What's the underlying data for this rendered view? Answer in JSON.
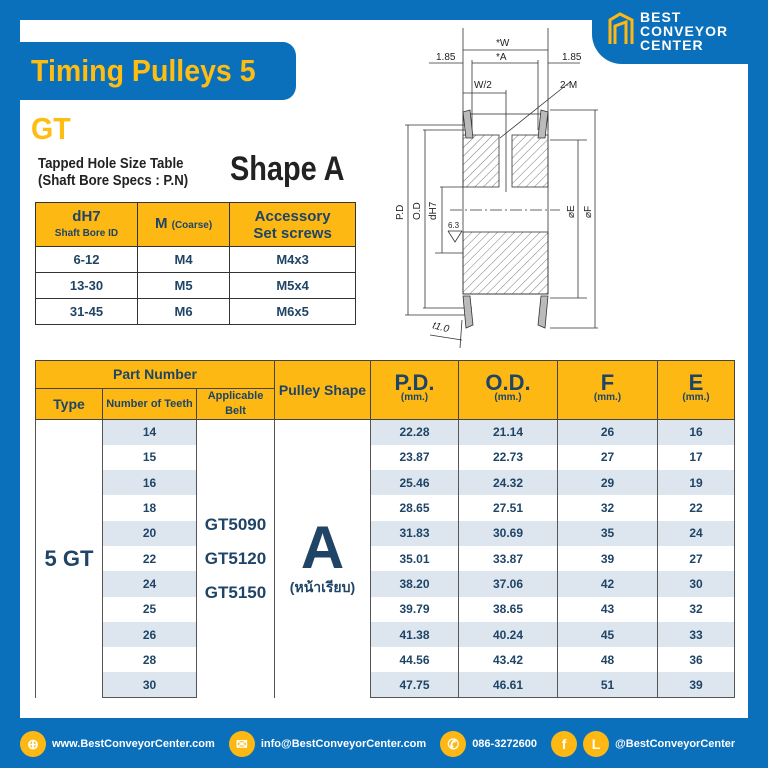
{
  "title": "Timing Pulleys 5 GT",
  "logo": {
    "line1": "BEST",
    "line2": "CONVEYOR",
    "line3": "CENTER"
  },
  "tapped_table": {
    "heading": [
      "Tapped Hole Size Table",
      "(Shaft Bore Specs : P.N)"
    ],
    "headers": [
      {
        "main": "dH7",
        "sub": "Shaft Bore ID"
      },
      {
        "main": "M",
        "sub": "(Coarse)"
      },
      {
        "main": "Accessory",
        "sub": "Set screws"
      }
    ],
    "rows": [
      [
        "6-12",
        "M4",
        "M4x3"
      ],
      [
        "13-30",
        "M5",
        "M5x4"
      ],
      [
        "31-45",
        "M6",
        "M6x5"
      ]
    ]
  },
  "shape_label": "Shape A",
  "drawing": {
    "labels": {
      "w": "*W",
      "a": "*A",
      "left": "1.85",
      "right": "1.85",
      "half": "W/2",
      "m": "2-M",
      "pd": "P.D",
      "od": "O.D",
      "dh7": "dH7",
      "rough": "6.3",
      "e": "⌀E",
      "f": "⌀F",
      "t": "t1.0"
    }
  },
  "main_table": {
    "headers": {
      "part_number": "Part Number",
      "type": "Type",
      "teeth": "Number of Teeth",
      "belt": "Applicable Belt",
      "shape": "Pulley Shape",
      "pd": "P.D.",
      "od": "O.D.",
      "f": "F",
      "e": "E",
      "unit": "(mm.)"
    },
    "type": "5 GT",
    "belts": [
      "GT5090",
      "GT5120",
      "GT5150"
    ],
    "shape": "A",
    "shape_sub": "(หน้าเรียบ)",
    "rows": [
      [
        "14",
        "22.28",
        "21.14",
        "26",
        "16"
      ],
      [
        "15",
        "23.87",
        "22.73",
        "27",
        "17"
      ],
      [
        "16",
        "25.46",
        "24.32",
        "29",
        "19"
      ],
      [
        "18",
        "28.65",
        "27.51",
        "32",
        "22"
      ],
      [
        "20",
        "31.83",
        "30.69",
        "35",
        "24"
      ],
      [
        "22",
        "35.01",
        "33.87",
        "39",
        "27"
      ],
      [
        "24",
        "38.20",
        "37.06",
        "42",
        "30"
      ],
      [
        "25",
        "39.79",
        "38.65",
        "43",
        "32"
      ],
      [
        "26",
        "41.38",
        "40.24",
        "45",
        "33"
      ],
      [
        "28",
        "44.56",
        "43.42",
        "48",
        "36"
      ],
      [
        "30",
        "47.75",
        "46.61",
        "51",
        "39"
      ]
    ]
  },
  "footer": {
    "website": "www.BestConveyorCenter.com",
    "email": "info@BestConveyorCenter.com",
    "phone": "086-3272600",
    "social": "@BestConveyorCenter"
  },
  "colors": {
    "blue": "#0a70bb",
    "yellow": "#fdb813",
    "text": "#1f4466"
  }
}
